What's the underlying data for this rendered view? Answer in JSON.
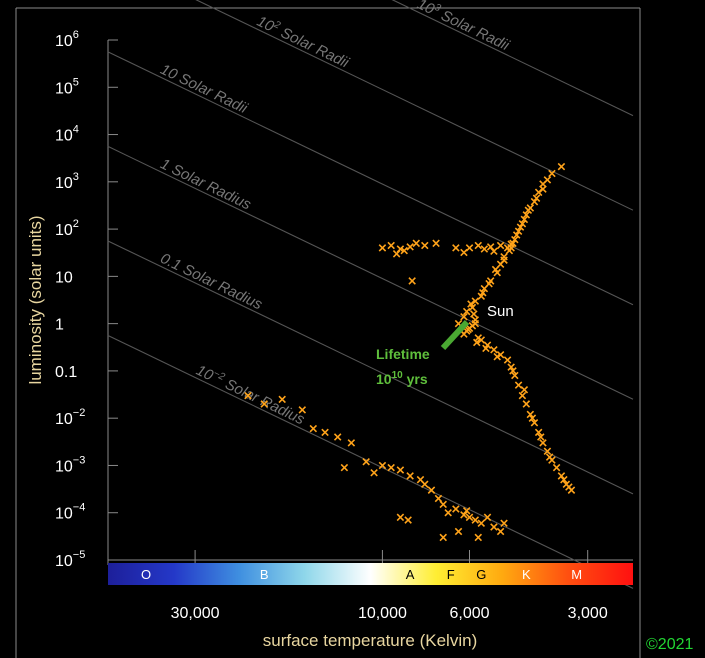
{
  "chart_data": {
    "type": "scatter",
    "title": "",
    "xlabel": "surface temperature (Kelvin)",
    "ylabel": "luminosity (solar units)",
    "x_scale": "log",
    "x_reversed": true,
    "y_scale": "log",
    "xlim": [
      50000,
      2300
    ],
    "ylim": [
      1e-05,
      1000000
    ],
    "x_ticks": [
      {
        "value": 30000,
        "label": "30,000"
      },
      {
        "value": 10000,
        "label": "10,000"
      },
      {
        "value": 6000,
        "label": "6,000"
      },
      {
        "value": 3000,
        "label": "3,000"
      }
    ],
    "y_ticks": [
      {
        "value": 1000000,
        "base": "10",
        "exp": "6"
      },
      {
        "value": 100000,
        "base": "10",
        "exp": "5"
      },
      {
        "value": 10000,
        "base": "10",
        "exp": "4"
      },
      {
        "value": 1000,
        "base": "10",
        "exp": "3"
      },
      {
        "value": 100,
        "base": "10",
        "exp": "2"
      },
      {
        "value": 10,
        "base": "10",
        "exp": ""
      },
      {
        "value": 1,
        "base": "1",
        "exp": ""
      },
      {
        "value": 0.1,
        "base": "0.1",
        "exp": ""
      },
      {
        "value": 0.01,
        "base": "10",
        "exp": "−2"
      },
      {
        "value": 0.001,
        "base": "10",
        "exp": "−3"
      },
      {
        "value": 0.0001,
        "base": "10",
        "exp": "−4"
      },
      {
        "value": 1e-05,
        "base": "10",
        "exp": "−5"
      }
    ],
    "spectral_classes": [
      {
        "label": "O",
        "temp": 40000
      },
      {
        "label": "B",
        "temp": 20000
      },
      {
        "label": "A",
        "temp": 8500
      },
      {
        "label": "F",
        "temp": 6700
      },
      {
        "label": "G",
        "temp": 5600
      },
      {
        "label": "K",
        "temp": 4300
      },
      {
        "label": "M",
        "temp": 3200
      }
    ],
    "spectral_colors": [
      "#1d1f9a",
      "#2438c8",
      "#3f8fe0",
      "#8fd7ea",
      "#ffffff",
      "#ffee33",
      "#ffaa10",
      "#ff5010",
      "#ff1010"
    ],
    "radius_lines": [
      {
        "radius": 0.01,
        "pre": "10",
        "exp": "−2",
        "post": " Solar Radius",
        "label_temp": 30000
      },
      {
        "radius": 0.1,
        "pre": "0.1 Solar Radius",
        "exp": "",
        "post": "",
        "label_temp": 37000
      },
      {
        "radius": 1,
        "pre": "1 Solar Radius",
        "exp": "",
        "post": "",
        "label_temp": 37000
      },
      {
        "radius": 10,
        "pre": "10 Solar Radii",
        "exp": "",
        "post": "",
        "label_temp": 37000
      },
      {
        "radius": 100,
        "pre": "10",
        "exp": "2",
        "post": " Solar Radii",
        "label_temp": 21000
      },
      {
        "radius": 1000,
        "pre": "10",
        "exp": "3",
        "post": " Solar Radii",
        "label_temp": 8200
      }
    ],
    "series": [
      {
        "group": "main sequence",
        "color": "#ffa31a",
        "points": [
          [
            6200,
            0.6
          ],
          [
            6100,
            0.7
          ],
          [
            6000,
            0.8
          ],
          [
            5900,
            0.9
          ],
          [
            5800,
            1.0
          ],
          [
            5800,
            1.2
          ],
          [
            5850,
            1.6
          ],
          [
            5900,
            2.2
          ],
          [
            5800,
            3.0
          ],
          [
            5700,
            0.5
          ],
          [
            5600,
            0.45
          ],
          [
            5400,
            0.35
          ],
          [
            5200,
            0.28
          ],
          [
            5000,
            0.22
          ],
          [
            4800,
            0.17
          ],
          [
            4700,
            0.12
          ],
          [
            4600,
            0.08
          ],
          [
            4500,
            0.05
          ],
          [
            4400,
            0.03
          ],
          [
            4300,
            0.02
          ],
          [
            4200,
            0.012
          ],
          [
            4100,
            0.008
          ],
          [
            4000,
            0.005
          ],
          [
            3900,
            0.003
          ],
          [
            3800,
            0.002
          ],
          [
            3700,
            0.0013
          ],
          [
            3600,
            0.0009
          ],
          [
            3500,
            0.0006
          ],
          [
            3400,
            0.0004
          ],
          [
            3300,
            0.0003
          ],
          [
            6300,
            0.7
          ],
          [
            6400,
            1.0
          ],
          [
            6200,
            1.4
          ],
          [
            6100,
            1.8
          ],
          [
            5950,
            2.6
          ],
          [
            5600,
            3.8
          ],
          [
            5500,
            5.5
          ],
          [
            5300,
            8
          ],
          [
            5100,
            12
          ],
          [
            5000,
            18
          ],
          [
            4900,
            26
          ],
          [
            4700,
            40
          ],
          [
            4600,
            60
          ],
          [
            4500,
            90
          ],
          [
            4400,
            130
          ],
          [
            4300,
            200
          ],
          [
            4200,
            280
          ],
          [
            4100,
            380
          ],
          [
            4000,
            600
          ],
          [
            3900,
            900
          ],
          [
            3700,
            1500
          ],
          [
            3500,
            2100
          ],
          [
            3800,
            1100
          ],
          [
            3900,
            700
          ],
          [
            4050,
            450
          ],
          [
            4250,
            250
          ],
          [
            4350,
            160
          ],
          [
            4450,
            110
          ],
          [
            4550,
            75
          ],
          [
            4650,
            50
          ],
          [
            4750,
            35
          ],
          [
            4900,
            22
          ],
          [
            5150,
            14
          ],
          [
            5350,
            7
          ],
          [
            5550,
            4.5
          ],
          [
            6050,
            0.75
          ],
          [
            5750,
            0.4
          ],
          [
            5450,
            0.3
          ],
          [
            5100,
            0.2
          ],
          [
            4650,
            0.1
          ],
          [
            4350,
            0.04
          ],
          [
            4150,
            0.01
          ],
          [
            3950,
            0.004
          ],
          [
            3750,
            0.0015
          ],
          [
            3450,
            0.0005
          ],
          [
            3350,
            0.00035
          ]
        ]
      },
      {
        "group": "giants",
        "color": "#ffa31a",
        "points": [
          [
            10000,
            40
          ],
          [
            9500,
            45
          ],
          [
            9000,
            38
          ],
          [
            8500,
            42
          ],
          [
            8200,
            50
          ],
          [
            7800,
            45
          ],
          [
            8800,
            35
          ],
          [
            6000,
            40
          ],
          [
            5700,
            45
          ],
          [
            5500,
            38
          ],
          [
            5300,
            42
          ],
          [
            5000,
            45
          ],
          [
            4800,
            40
          ],
          [
            6200,
            32
          ],
          [
            8400,
            8
          ],
          [
            7300,
            50
          ],
          [
            6500,
            40
          ],
          [
            5200,
            34
          ],
          [
            4700,
            48
          ],
          [
            9200,
            30
          ]
        ]
      },
      {
        "group": "white dwarfs",
        "color": "#ffa31a",
        "points": [
          [
            22000,
            0.03
          ],
          [
            20000,
            0.02
          ],
          [
            18000,
            0.025
          ],
          [
            16000,
            0.015
          ],
          [
            15000,
            0.006
          ],
          [
            14000,
            0.005
          ],
          [
            13000,
            0.004
          ],
          [
            12000,
            0.003
          ],
          [
            11000,
            0.0012
          ],
          [
            10000,
            0.001
          ],
          [
            9500,
            0.0009
          ],
          [
            9000,
            0.0008
          ],
          [
            8500,
            0.0006
          ],
          [
            8000,
            0.0005
          ],
          [
            7800,
            0.0004
          ],
          [
            7500,
            0.0003
          ],
          [
            7200,
            0.0002
          ],
          [
            7000,
            0.00015
          ],
          [
            6800,
            0.0001
          ],
          [
            6500,
            0.00012
          ],
          [
            6200,
            9e-05
          ],
          [
            6000,
            8e-05
          ],
          [
            5800,
            7e-05
          ],
          [
            5600,
            6e-05
          ],
          [
            5400,
            8e-05
          ],
          [
            5200,
            5e-05
          ],
          [
            5000,
            4e-05
          ],
          [
            4900,
            6e-05
          ],
          [
            5700,
            3e-05
          ],
          [
            6400,
            4e-05
          ],
          [
            7000,
            3e-05
          ],
          [
            9000,
            8e-05
          ],
          [
            8600,
            7e-05
          ],
          [
            10500,
            0.0007
          ],
          [
            12500,
            0.0009
          ],
          [
            6100,
            0.00011
          ]
        ]
      }
    ],
    "annotations": {
      "sun": {
        "label": "Sun",
        "temp": 5800,
        "lum": 1
      },
      "lifetime": {
        "line1": "Lifetime",
        "line2_base": "10",
        "line2_exp": "10",
        "line2_post": " yrs"
      }
    }
  },
  "copyright": "©2021"
}
